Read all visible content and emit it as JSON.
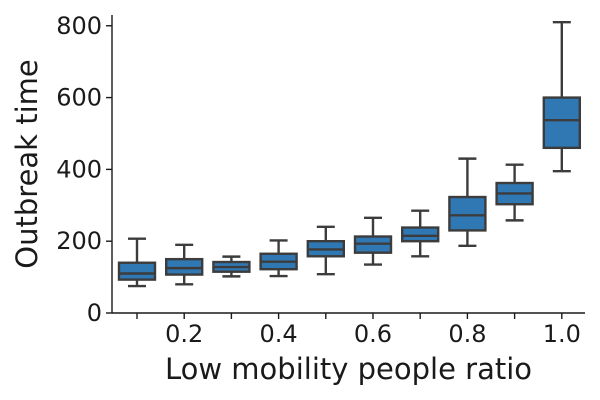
{
  "chart_data": {
    "type": "box",
    "title": "",
    "xlabel": "Low mobility people ratio",
    "ylabel": "Outbreak time",
    "ylim": [
      0,
      830
    ],
    "yticks": [
      0,
      200,
      400,
      600,
      800
    ],
    "x_tick_labels": [
      {
        "x": 0.2,
        "label": "0.2"
      },
      {
        "x": 0.4,
        "label": "0.4"
      },
      {
        "x": 0.6,
        "label": "0.6"
      },
      {
        "x": 0.8,
        "label": "0.8"
      },
      {
        "x": 1.0,
        "label": "1.0"
      }
    ],
    "categories": [
      0.1,
      0.2,
      0.3,
      0.4,
      0.5,
      0.6,
      0.7,
      0.8,
      0.9,
      1.0
    ],
    "boxes": [
      {
        "x": 0.1,
        "whisker_low": 75,
        "q1": 93,
        "median": 110,
        "q3": 140,
        "whisker_high": 207
      },
      {
        "x": 0.2,
        "whisker_low": 80,
        "q1": 107,
        "median": 125,
        "q3": 150,
        "whisker_high": 190
      },
      {
        "x": 0.3,
        "whisker_low": 102,
        "q1": 115,
        "median": 128,
        "q3": 142,
        "whisker_high": 157
      },
      {
        "x": 0.4,
        "whisker_low": 103,
        "q1": 122,
        "median": 143,
        "q3": 165,
        "whisker_high": 202
      },
      {
        "x": 0.5,
        "whisker_low": 108,
        "q1": 158,
        "median": 177,
        "q3": 200,
        "whisker_high": 240
      },
      {
        "x": 0.6,
        "whisker_low": 135,
        "q1": 168,
        "median": 193,
        "q3": 213,
        "whisker_high": 265
      },
      {
        "x": 0.7,
        "whisker_low": 158,
        "q1": 200,
        "median": 215,
        "q3": 238,
        "whisker_high": 285
      },
      {
        "x": 0.8,
        "whisker_low": 187,
        "q1": 230,
        "median": 272,
        "q3": 323,
        "whisker_high": 430
      },
      {
        "x": 0.9,
        "whisker_low": 258,
        "q1": 303,
        "median": 333,
        "q3": 362,
        "whisker_high": 413
      },
      {
        "x": 1.0,
        "whisker_low": 395,
        "q1": 460,
        "median": 537,
        "q3": 600,
        "whisker_high": 810
      }
    ],
    "box_color": "#2f78b3",
    "line_color": "#3c3c3c",
    "grid": false,
    "legend": "none"
  }
}
